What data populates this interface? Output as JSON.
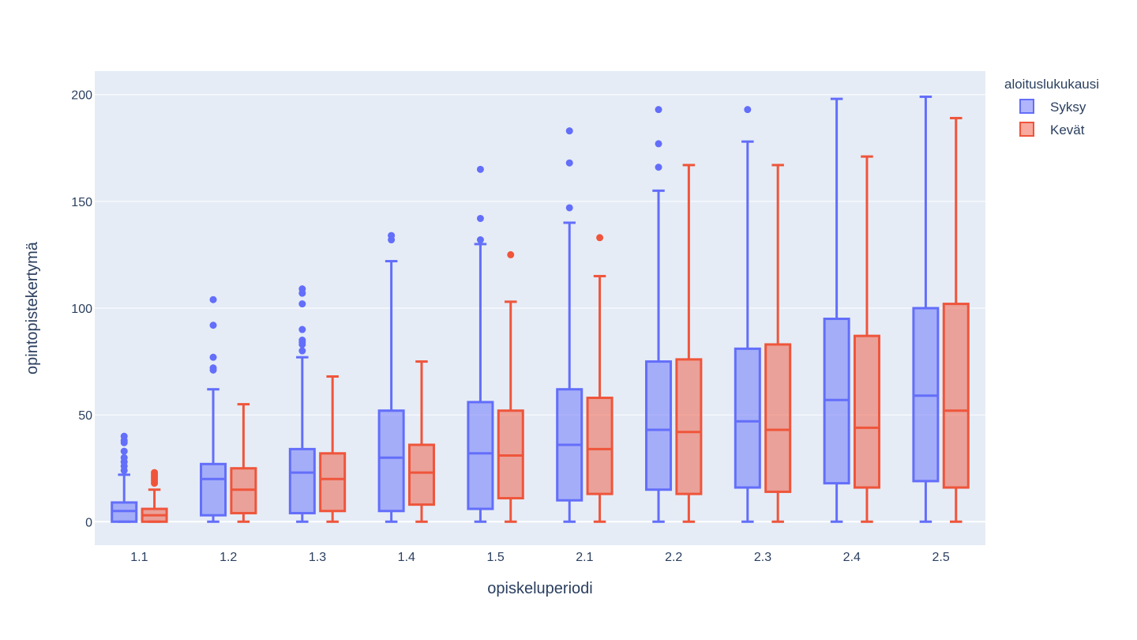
{
  "chart_data": {
    "type": "box",
    "xlabel": "opiskeluperiodi",
    "ylabel": "opintopistekertymä",
    "legend_title": "aloituslukukausi",
    "legend_position": "top-right",
    "grid": true,
    "ylim": [
      -11,
      211
    ],
    "yticks": [
      0,
      50,
      100,
      150,
      200
    ],
    "categories": [
      "1.1",
      "1.2",
      "1.3",
      "1.4",
      "1.5",
      "2.1",
      "2.2",
      "2.3",
      "2.4",
      "2.5"
    ],
    "series": [
      {
        "name": "Syksy",
        "color": "#636efa",
        "boxes": [
          {
            "min": 0,
            "q1": 0,
            "median": 5,
            "q3": 9,
            "max": 22,
            "outliers": [
              24,
              26,
              28,
              30,
              33,
              37,
              38,
              40
            ]
          },
          {
            "min": 0,
            "q1": 3,
            "median": 20,
            "q3": 27,
            "max": 62,
            "outliers": [
              71,
              72,
              77,
              92,
              104
            ]
          },
          {
            "min": 0,
            "q1": 4,
            "median": 23,
            "q3": 34,
            "max": 77,
            "outliers": [
              80,
              83,
              84,
              85,
              90,
              102,
              107,
              109
            ]
          },
          {
            "min": 0,
            "q1": 5,
            "median": 30,
            "q3": 52,
            "max": 122,
            "outliers": [
              132,
              134
            ]
          },
          {
            "min": 0,
            "q1": 6,
            "median": 32,
            "q3": 56,
            "max": 130,
            "outliers": [
              132,
              142,
              165
            ]
          },
          {
            "min": 0,
            "q1": 10,
            "median": 36,
            "q3": 62,
            "max": 140,
            "outliers": [
              147,
              168,
              183
            ]
          },
          {
            "min": 0,
            "q1": 15,
            "median": 43,
            "q3": 75,
            "max": 155,
            "outliers": [
              166,
              177,
              193
            ]
          },
          {
            "min": 0,
            "q1": 16,
            "median": 47,
            "q3": 81,
            "max": 178,
            "outliers": [
              193
            ]
          },
          {
            "min": 0,
            "q1": 18,
            "median": 57,
            "q3": 95,
            "max": 198,
            "outliers": []
          },
          {
            "min": 0,
            "q1": 19,
            "median": 59,
            "q3": 100,
            "max": 199,
            "outliers": []
          }
        ]
      },
      {
        "name": "Kevät",
        "color": "#ef553b",
        "boxes": [
          {
            "min": 0,
            "q1": 0,
            "median": 3,
            "q3": 6,
            "max": 15,
            "outliers": [
              18,
              19,
              20,
              21,
              22,
              23
            ]
          },
          {
            "min": 0,
            "q1": 4,
            "median": 15,
            "q3": 25,
            "max": 55,
            "outliers": []
          },
          {
            "min": 0,
            "q1": 5,
            "median": 20,
            "q3": 32,
            "max": 68,
            "outliers": []
          },
          {
            "min": 0,
            "q1": 8,
            "median": 23,
            "q3": 36,
            "max": 75,
            "outliers": []
          },
          {
            "min": 0,
            "q1": 11,
            "median": 31,
            "q3": 52,
            "max": 103,
            "outliers": [
              125
            ]
          },
          {
            "min": 0,
            "q1": 13,
            "median": 34,
            "q3": 58,
            "max": 115,
            "outliers": [
              133
            ]
          },
          {
            "min": 0,
            "q1": 13,
            "median": 42,
            "q3": 76,
            "max": 167,
            "outliers": []
          },
          {
            "min": 0,
            "q1": 14,
            "median": 43,
            "q3": 83,
            "max": 167,
            "outliers": []
          },
          {
            "min": 0,
            "q1": 16,
            "median": 44,
            "q3": 87,
            "max": 171,
            "outliers": []
          },
          {
            "min": 0,
            "q1": 16,
            "median": 52,
            "q3": 102,
            "max": 189,
            "outliers": []
          }
        ]
      }
    ]
  },
  "colors": {
    "plot_background": "#e5ecf6",
    "grid": "#ffffff",
    "text": "#2a3f5f"
  }
}
